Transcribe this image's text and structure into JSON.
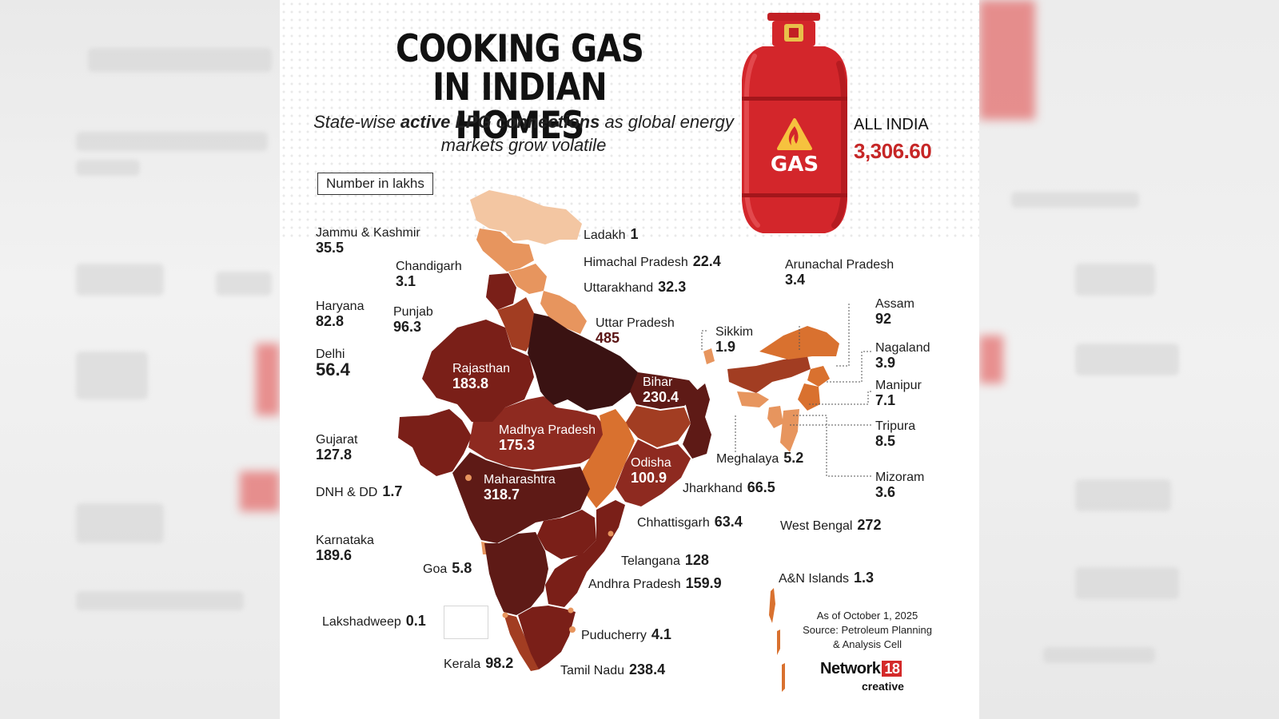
{
  "title_lines": [
    "COOKING GAS",
    "IN INDIAN HOMES"
  ],
  "subtitle": {
    "pre": "State-wise ",
    "bold": "active LPG connections",
    "post": " as global energy markets grow volatile"
  },
  "unit": "Number in lakhs",
  "all_india": {
    "label": "ALL INDIA",
    "value": "3,306.60"
  },
  "cylinder_text": "GAS",
  "colors": {
    "darkest": "#3a1212",
    "dark": "#5e1a16",
    "deep_red": "#7a1f18",
    "red": "#8e2a20",
    "brown": "#a23d22",
    "orange": "#d9712f",
    "light_orange": "#e7955e",
    "peach": "#f3c6a2",
    "accent": "#c62626"
  },
  "states": [
    {
      "name": "Jammu & Kashmir",
      "value": "35.5"
    },
    {
      "name": "Ladakh",
      "value": "1"
    },
    {
      "name": "Chandigarh",
      "value": "3.1"
    },
    {
      "name": "Himachal Pradesh",
      "value": "22.4"
    },
    {
      "name": "Haryana",
      "value": "82.8"
    },
    {
      "name": "Punjab",
      "value": "96.3"
    },
    {
      "name": "Uttarakhand",
      "value": "32.3"
    },
    {
      "name": "Arunachal Pradesh",
      "value": "3.4"
    },
    {
      "name": "Delhi",
      "value": "56.4"
    },
    {
      "name": "Uttar Pradesh",
      "value": "485"
    },
    {
      "name": "Sikkim",
      "value": "1.9"
    },
    {
      "name": "Assam",
      "value": "92"
    },
    {
      "name": "Rajasthan",
      "value": "183.8"
    },
    {
      "name": "Nagaland",
      "value": "3.9"
    },
    {
      "name": "Bihar",
      "value": "230.4"
    },
    {
      "name": "Manipur",
      "value": "7.1"
    },
    {
      "name": "Gujarat",
      "value": "127.8"
    },
    {
      "name": "Madhya Pradesh",
      "value": "175.3"
    },
    {
      "name": "Tripura",
      "value": "8.5"
    },
    {
      "name": "Meghalaya",
      "value": "5.2"
    },
    {
      "name": "Odisha",
      "value": "100.9"
    },
    {
      "name": "Mizoram",
      "value": "3.6"
    },
    {
      "name": "Maharashtra",
      "value": "318.7"
    },
    {
      "name": "DNH & DD",
      "value": "1.7"
    },
    {
      "name": "Jharkhand",
      "value": "66.5"
    },
    {
      "name": "Chhattisgarh",
      "value": "63.4"
    },
    {
      "name": "West Bengal",
      "value": "272"
    },
    {
      "name": "Karnataka",
      "value": "189.6"
    },
    {
      "name": "Telangana",
      "value": "128"
    },
    {
      "name": "Goa",
      "value": "5.8"
    },
    {
      "name": "A&N Islands",
      "value": "1.3"
    },
    {
      "name": "Andhra Pradesh",
      "value": "159.9"
    },
    {
      "name": "Lakshadweep",
      "value": "0.1"
    },
    {
      "name": "Puducherry",
      "value": "4.1"
    },
    {
      "name": "Kerala",
      "value": "98.2"
    },
    {
      "name": "Tamil Nadu",
      "value": "238.4"
    }
  ],
  "source_lines": [
    "As of October 1, 2025",
    "Source: Petroleum Planning",
    "& Analysis Cell"
  ],
  "brand": {
    "name": "Network",
    "number": "18",
    "sub": "creative"
  }
}
